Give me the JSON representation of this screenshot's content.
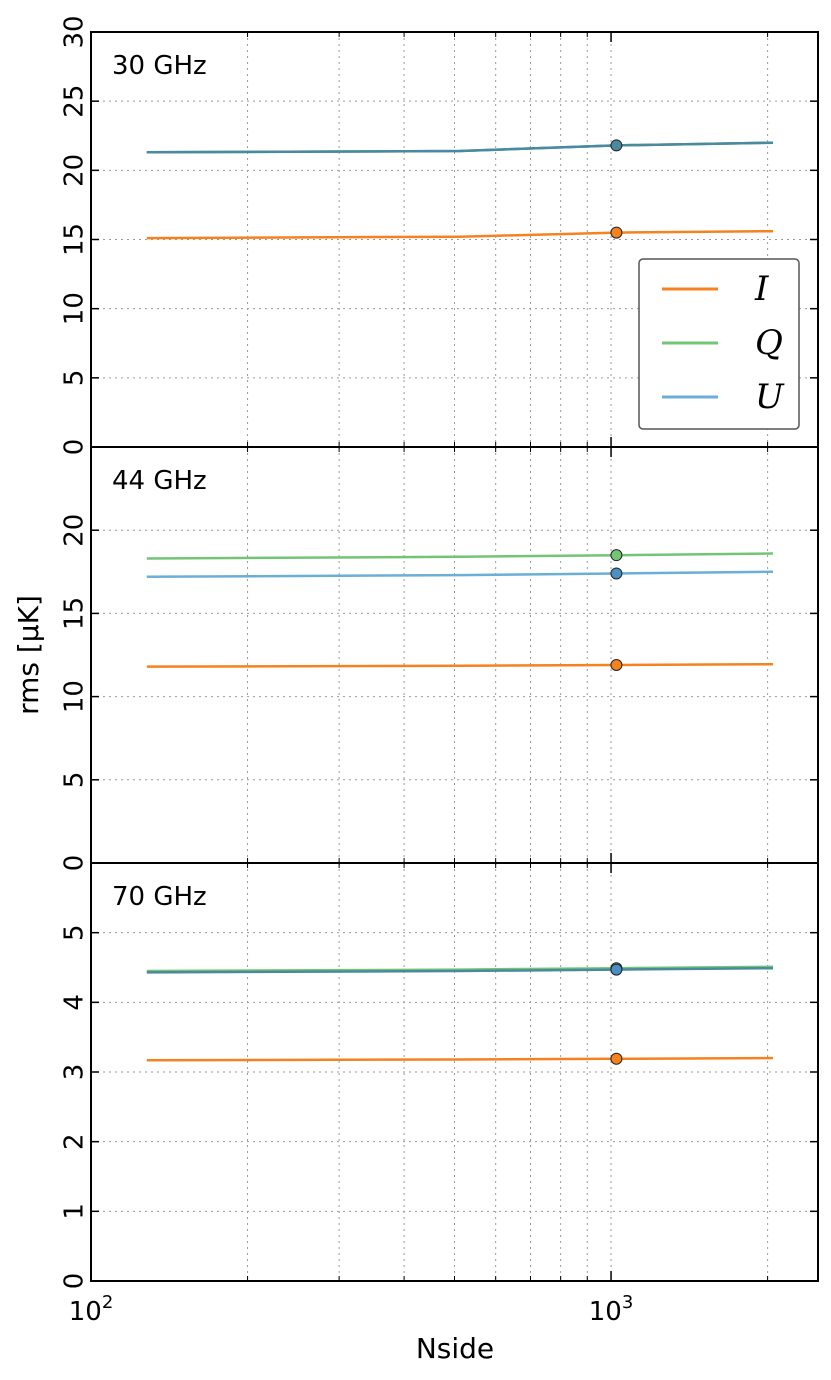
{
  "chart_data": {
    "type": "line",
    "xlabel": "Nside",
    "ylabel": "rms [μK]",
    "xscale": "log",
    "xlim": [
      100,
      2500
    ],
    "x_major_ticks": [
      {
        "value": 100,
        "base": "10",
        "exp": "2"
      },
      {
        "value": 1000,
        "base": "10",
        "exp": "3"
      }
    ],
    "x_minor_ticks": [
      200,
      300,
      400,
      500,
      600,
      700,
      800,
      900,
      2000
    ],
    "grid": true,
    "legend": {
      "panel": 0,
      "location": "right",
      "entries": [
        {
          "label": "I",
          "color": "#f5821f"
        },
        {
          "label": "Q",
          "color": "#74c476"
        },
        {
          "label": "U",
          "color": "#6baed6"
        }
      ]
    },
    "marker_color": {
      "I": "#f5821f",
      "Q": "#74c476",
      "U": "#4a90c2",
      "QU": "#4a8a9e"
    },
    "panels": [
      {
        "label": "30 GHz",
        "ylim": [
          0,
          30
        ],
        "yticks": [
          "0",
          "5",
          "10",
          "15",
          "20",
          "25",
          "30"
        ],
        "x": [
          128,
          512,
          1024,
          2048
        ],
        "series": [
          {
            "name": "I",
            "color": "#f5821f",
            "values": [
              15.1,
              15.2,
              15.5,
              15.6
            ]
          },
          {
            "name": "Q",
            "color": "#4a8a9e",
            "values": [
              21.3,
              21.4,
              21.8,
              22.0
            ]
          },
          {
            "name": "U",
            "color": "#4a8a9e",
            "values": [
              21.3,
              21.4,
              21.8,
              22.0
            ]
          }
        ],
        "markers": [
          {
            "series": "I",
            "x": 1024,
            "y": 15.5
          },
          {
            "series": "U",
            "x": 1024,
            "y": 21.8
          }
        ]
      },
      {
        "label": "44 GHz",
        "ylim": [
          0,
          25
        ],
        "yticks": [
          "0",
          "5",
          "10",
          "15",
          "20"
        ],
        "x": [
          128,
          512,
          1024,
          2048
        ],
        "series": [
          {
            "name": "I",
            "color": "#f5821f",
            "values": [
              11.8,
              11.85,
              11.9,
              11.95
            ]
          },
          {
            "name": "Q",
            "color": "#74c476",
            "values": [
              18.3,
              18.4,
              18.5,
              18.6
            ]
          },
          {
            "name": "U",
            "color": "#6baed6",
            "values": [
              17.2,
              17.3,
              17.4,
              17.5
            ]
          }
        ],
        "markers": [
          {
            "series": "I",
            "x": 1024,
            "y": 11.9
          },
          {
            "series": "Q",
            "x": 1024,
            "y": 18.5
          },
          {
            "series": "U",
            "x": 1024,
            "y": 17.4
          }
        ]
      },
      {
        "label": "70 GHz",
        "ylim": [
          0,
          6
        ],
        "yticks": [
          "0",
          "1",
          "2",
          "3",
          "4",
          "5"
        ],
        "x": [
          128,
          512,
          1024,
          2048
        ],
        "series": [
          {
            "name": "I",
            "color": "#f5821f",
            "values": [
              3.17,
              3.18,
              3.19,
              3.2
            ]
          },
          {
            "name": "Q",
            "color": "#74c476",
            "values": [
              4.45,
              4.47,
              4.49,
              4.51
            ]
          },
          {
            "name": "U",
            "color": "#4a8a9e",
            "values": [
              4.43,
              4.45,
              4.47,
              4.49
            ]
          }
        ],
        "markers": [
          {
            "series": "I",
            "x": 1024,
            "y": 3.19
          },
          {
            "series": "Q",
            "x": 1024,
            "y": 4.49
          },
          {
            "series": "U",
            "x": 1024,
            "y": 4.47
          }
        ]
      }
    ]
  }
}
